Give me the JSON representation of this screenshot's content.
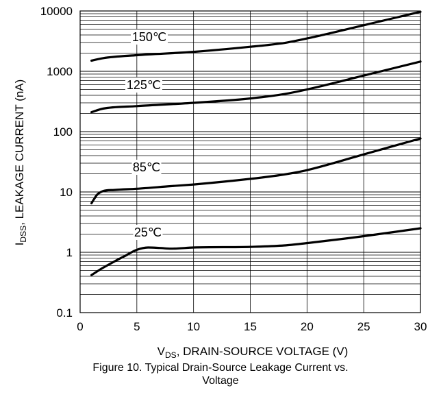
{
  "chart_data": {
    "type": "line",
    "ylabel": {
      "main": "I",
      "sub": "DSS",
      "rest": ", LEAKAGE CURRENT (nA)"
    },
    "xlabel": {
      "main": "V",
      "sub": "DS",
      "rest": ", DRAIN-SOURCE VOLTAGE (V)"
    },
    "xlim": [
      0,
      30
    ],
    "ylim": [
      0.1,
      10000
    ],
    "yscale": "log",
    "x_ticks": [
      "0",
      "5",
      "10",
      "15",
      "20",
      "25",
      "30"
    ],
    "y_ticks": [
      "0.1",
      "1",
      "10",
      "100",
      "1000",
      "10000"
    ],
    "grid": true,
    "series": [
      {
        "name": "150℃",
        "x": [
          1,
          2,
          5,
          10,
          15,
          18,
          20,
          25,
          30
        ],
        "y": [
          1500,
          1650,
          1850,
          2100,
          2550,
          2950,
          3500,
          5800,
          9700
        ]
      },
      {
        "name": "125℃",
        "x": [
          1,
          2,
          5,
          10,
          15,
          18,
          20,
          25,
          30
        ],
        "y": [
          210,
          240,
          265,
          300,
          355,
          420,
          500,
          850,
          1450
        ]
      },
      {
        "name": "85℃",
        "x": [
          1,
          1.5,
          2,
          3,
          5,
          8,
          10,
          15,
          18,
          20,
          25,
          30
        ],
        "y": [
          6.5,
          9,
          10.3,
          10.8,
          11.3,
          12.5,
          13.3,
          16.5,
          19.5,
          23,
          42,
          77
        ]
      },
      {
        "name": "25℃",
        "x": [
          1,
          2,
          3,
          4,
          5,
          6,
          7,
          8,
          10,
          15,
          18,
          20,
          25,
          30
        ],
        "y": [
          0.42,
          0.55,
          0.7,
          0.88,
          1.1,
          1.2,
          1.18,
          1.15,
          1.2,
          1.23,
          1.3,
          1.42,
          1.85,
          2.5
        ]
      }
    ]
  },
  "caption": {
    "line1": "Figure 10. Typical Drain-Source Leakage Current vs.",
    "line2": "Voltage"
  }
}
